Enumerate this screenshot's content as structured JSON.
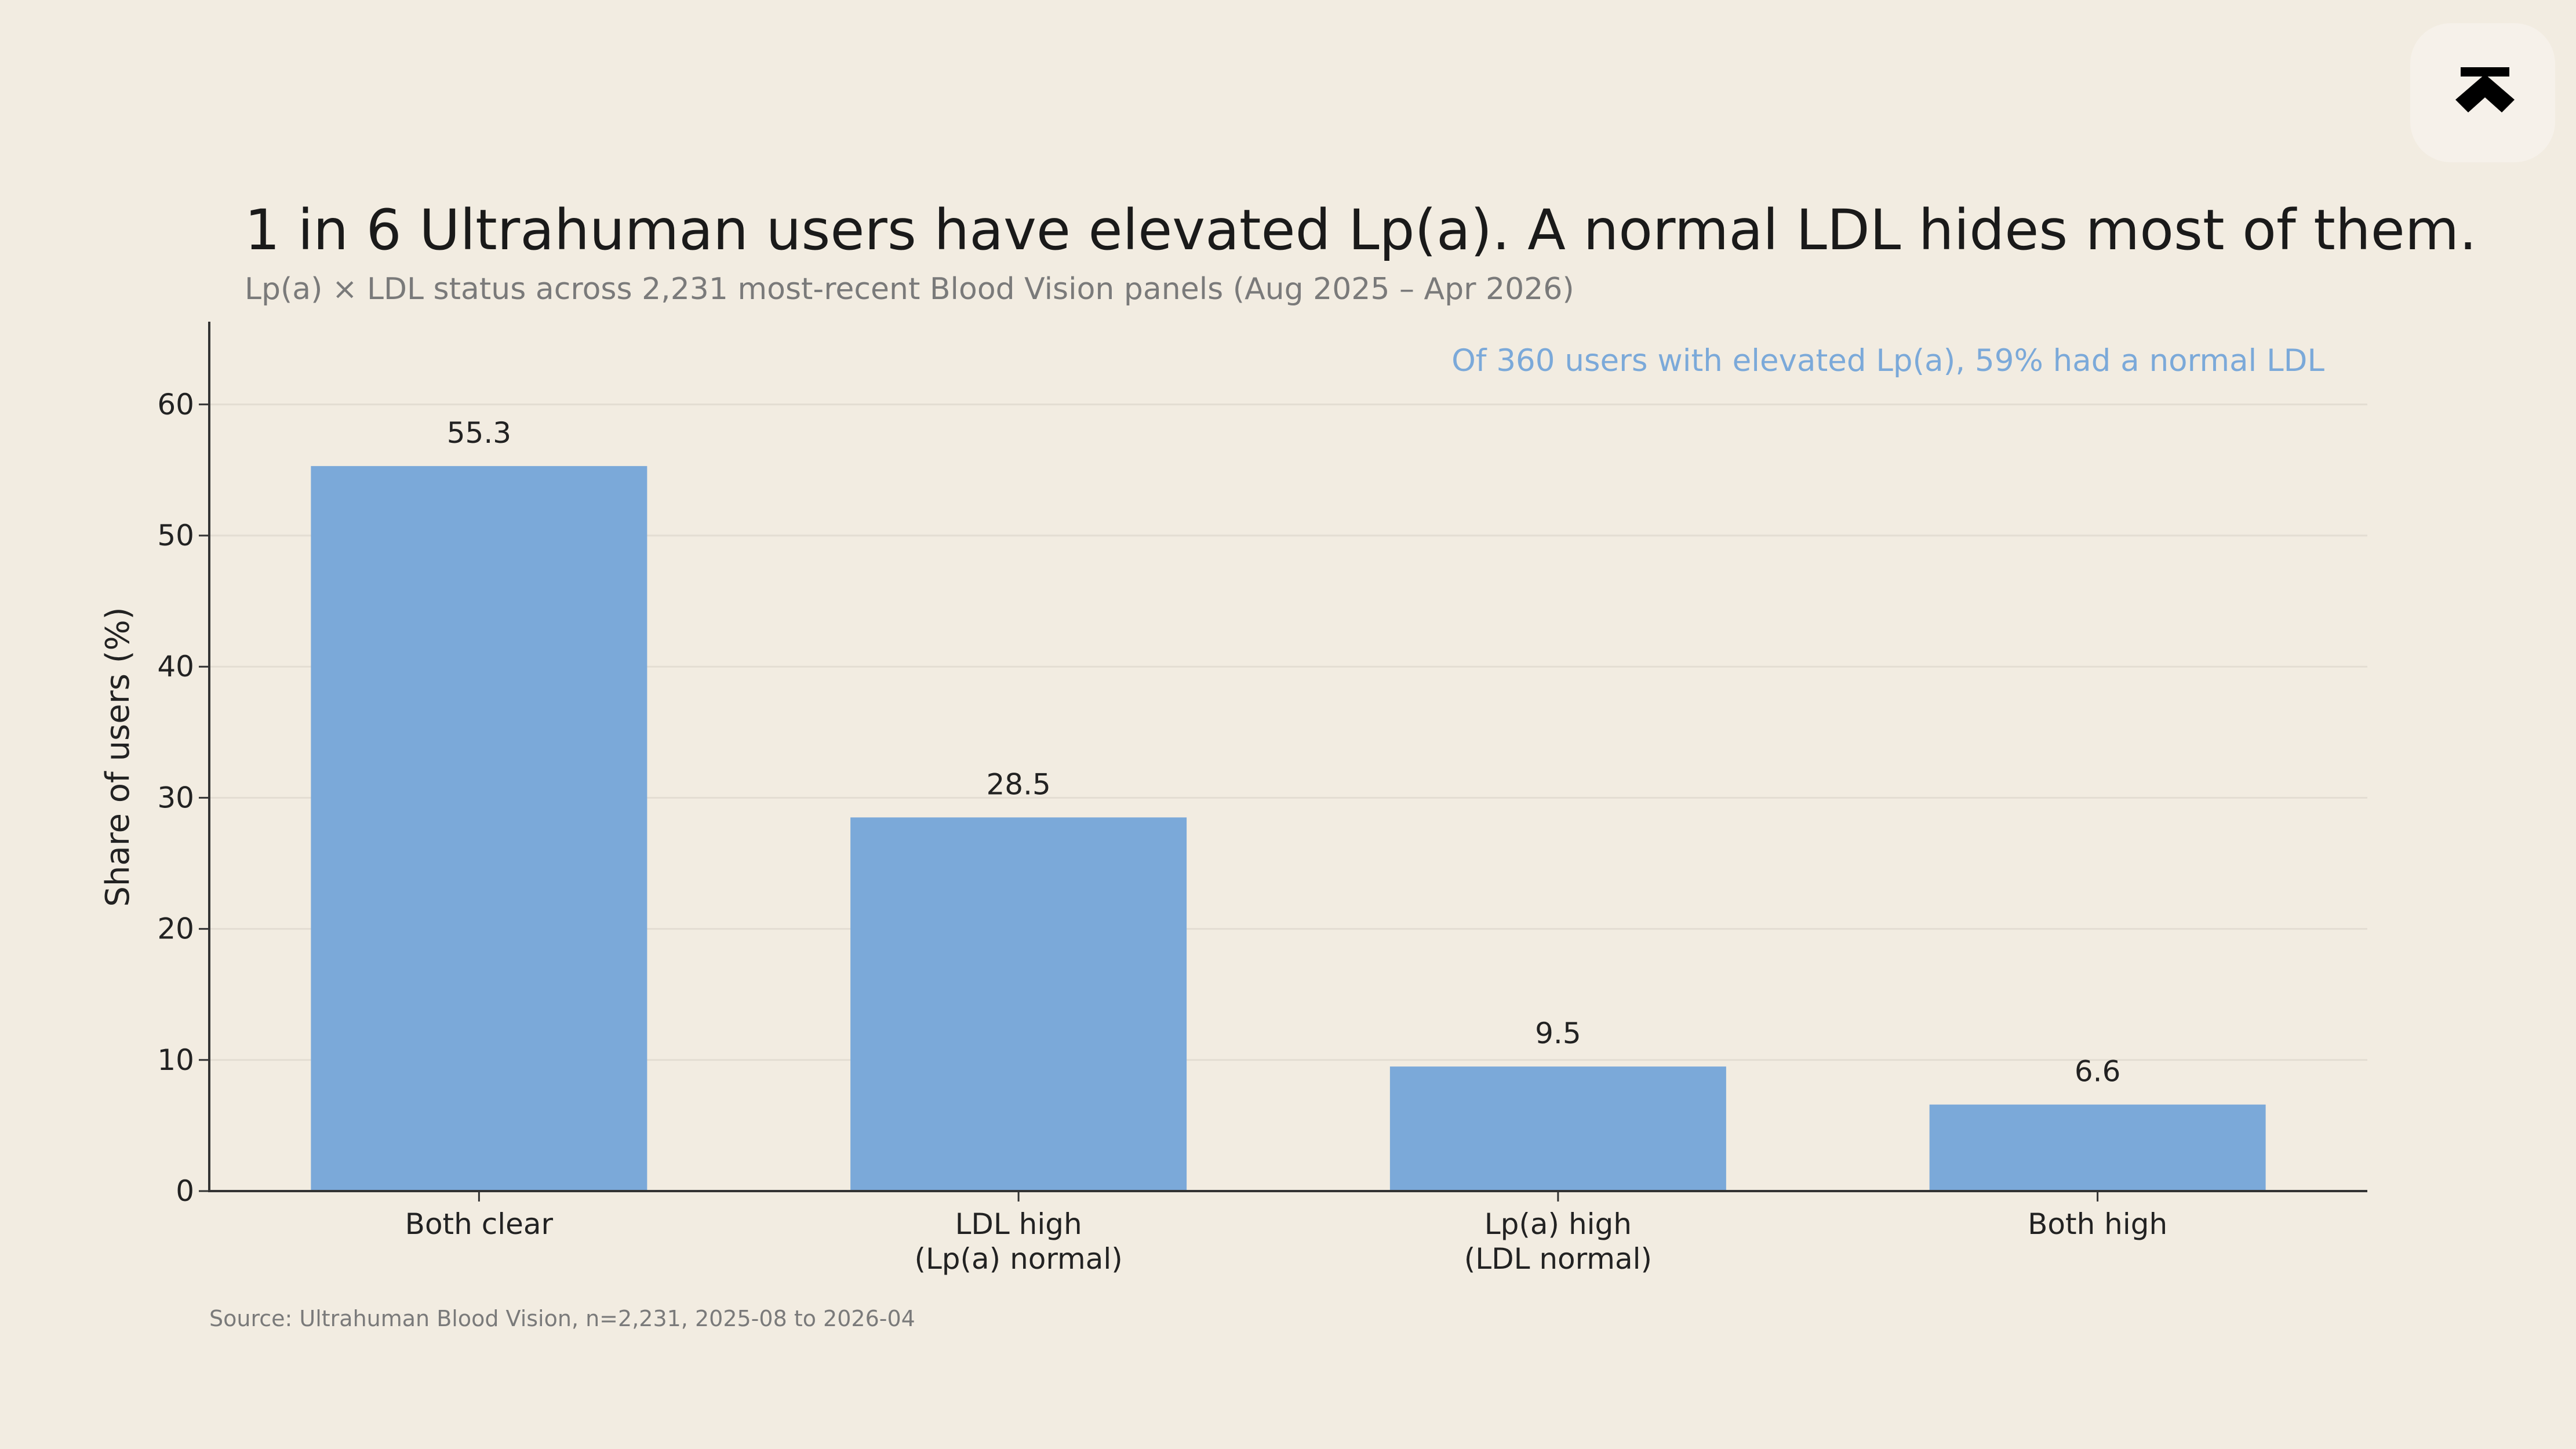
{
  "logo": {
    "icon": "ultrahuman-logo-icon"
  },
  "colors": {
    "background": "#F2ECE1",
    "bar": "#7BA9D9",
    "annotation": "#7BA9D9",
    "grid": "#E3DDD2",
    "axis": "#333333",
    "logo_bg": "#F6F1EA",
    "logo_mark": "#000000"
  },
  "chart_data": {
    "type": "bar",
    "title": "1 in 6 Ultrahuman users have elevated Lp(a). A normal LDL hides most of them.",
    "subtitle": "Lp(a) × LDL status across 2,231 most-recent Blood Vision panels (Aug 2025 – Apr 2026)",
    "annotation": "Of 360 users with elevated Lp(a), 59% had a normal LDL",
    "xlabel": "",
    "ylabel": "Share of users (%)",
    "ylim": [
      0,
      66
    ],
    "yticks": [
      0,
      10,
      20,
      30,
      40,
      50,
      60
    ],
    "grid": true,
    "categories": [
      [
        "Both clear"
      ],
      [
        "LDL high",
        "(Lp(a) normal)"
      ],
      [
        "Lp(a) high",
        "(LDL normal)"
      ],
      [
        "Both high"
      ]
    ],
    "values": [
      55.3,
      28.5,
      9.5,
      6.6
    ],
    "value_labels": [
      "55.3",
      "28.5",
      "9.5",
      "6.6"
    ],
    "source": "Source: Ultrahuman Blood Vision, n=2,231, 2025-08 to 2026-04"
  }
}
